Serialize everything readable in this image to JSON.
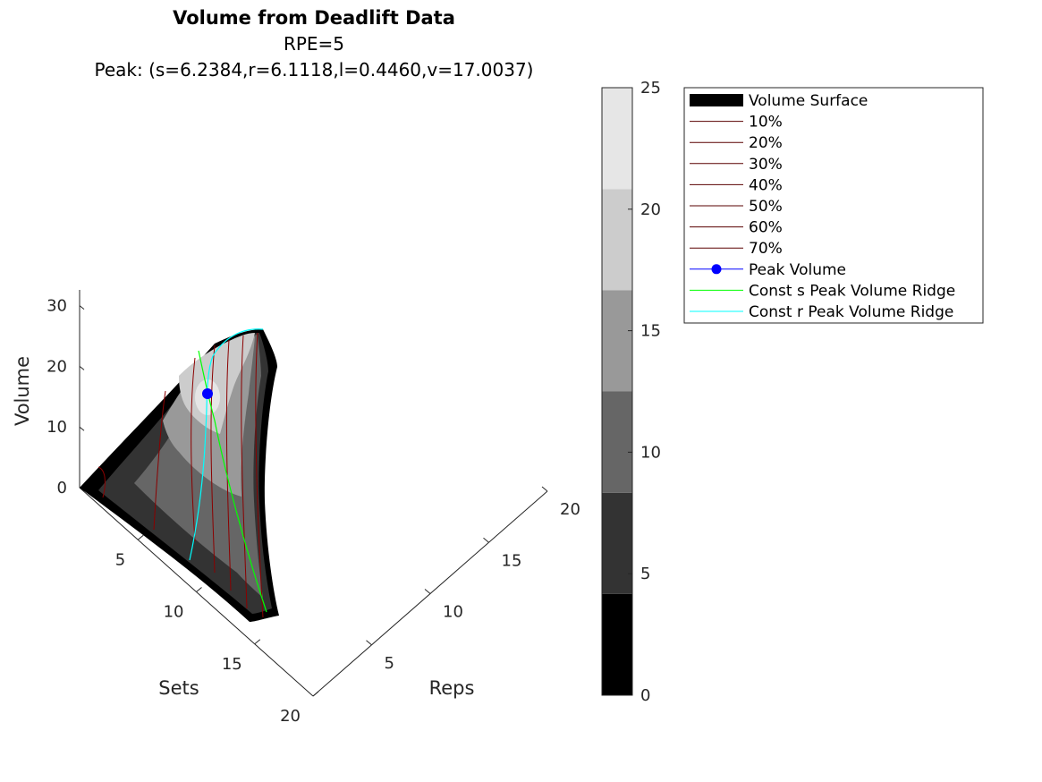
{
  "chart_data": {
    "type": "surface3d",
    "title": "Volume from Deadlift Data",
    "subtitle": "RPE=5",
    "peak_text": "Peak: (s=6.2384,r=6.1118,l=0.4460,v=17.0037)",
    "xlabel": "Sets",
    "ylabel": "Reps",
    "zlabel": "Volume",
    "xlim": [
      0,
      20
    ],
    "ylim": [
      0,
      20
    ],
    "zlim": [
      0,
      30
    ],
    "x_ticks": [
      "5",
      "10",
      "15",
      "20"
    ],
    "y_ticks": [
      "5",
      "10",
      "15",
      "20"
    ],
    "z_ticks": [
      "0",
      "10",
      "20",
      "30"
    ],
    "colormap": "gray",
    "colorbar": {
      "range": [
        0,
        25
      ],
      "ticks": [
        "0",
        "5",
        "10",
        "15",
        "20",
        "25"
      ],
      "levels": [
        {
          "from": 0,
          "to": 4.17,
          "color": "#000000"
        },
        {
          "from": 4.17,
          "to": 8.33,
          "color": "#333333"
        },
        {
          "from": 8.33,
          "to": 12.5,
          "color": "#666666"
        },
        {
          "from": 12.5,
          "to": 16.67,
          "color": "#999999"
        },
        {
          "from": 16.67,
          "to": 20.83,
          "color": "#cccccc"
        },
        {
          "from": 20.83,
          "to": 25,
          "color": "#e6e6e6"
        }
      ]
    },
    "peak": {
      "s": 6.2384,
      "r": 6.1118,
      "l": 0.446,
      "v": 17.0037
    },
    "legend": {
      "placement": "top-right",
      "entries": [
        {
          "label": "Volume Surface",
          "kind": "patch",
          "color": "#000000"
        },
        {
          "label": "10%",
          "kind": "line",
          "color": "#5a0000"
        },
        {
          "label": "20%",
          "kind": "line",
          "color": "#5a0000"
        },
        {
          "label": "30%",
          "kind": "line",
          "color": "#5a0000"
        },
        {
          "label": "40%",
          "kind": "line",
          "color": "#5a0000"
        },
        {
          "label": "50%",
          "kind": "line",
          "color": "#5a0000"
        },
        {
          "label": "60%",
          "kind": "line",
          "color": "#5a0000"
        },
        {
          "label": "70%",
          "kind": "line",
          "color": "#5a0000"
        },
        {
          "label": "Peak Volume",
          "kind": "marker",
          "color": "#0000ff"
        },
        {
          "label": "Const s Peak Volume Ridge",
          "kind": "line",
          "color": "#00ff00"
        },
        {
          "label": "Const r Peak Volume Ridge",
          "kind": "line",
          "color": "#00ffff"
        }
      ]
    }
  }
}
